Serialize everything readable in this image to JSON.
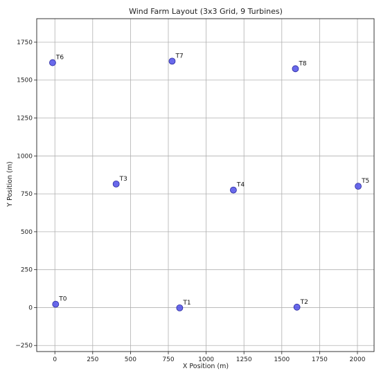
{
  "chart_data": {
    "type": "scatter",
    "title": "Wind Farm Layout (3x3 Grid, 9 Turbines)",
    "xlabel": "X Position (m)",
    "ylabel": "Y Position (m)",
    "xlim": [
      -120,
      2110
    ],
    "ylim": [
      -290,
      1905
    ],
    "xticks": [
      0,
      250,
      500,
      750,
      1000,
      1250,
      1500,
      1750,
      2000
    ],
    "yticks": [
      -250,
      0,
      250,
      500,
      750,
      1000,
      1250,
      1500,
      1750
    ],
    "grid": true,
    "marker_color": "#4f4fe8",
    "marker_edge": "#2a2a9e",
    "points": [
      {
        "label": "T0",
        "x": 5,
        "y": 22
      },
      {
        "label": "T1",
        "x": 825,
        "y": -2
      },
      {
        "label": "T2",
        "x": 1600,
        "y": 3
      },
      {
        "label": "T3",
        "x": 405,
        "y": 815
      },
      {
        "label": "T4",
        "x": 1180,
        "y": 775
      },
      {
        "label": "T5",
        "x": 2005,
        "y": 800
      },
      {
        "label": "T6",
        "x": -15,
        "y": 1615
      },
      {
        "label": "T7",
        "x": 775,
        "y": 1625
      },
      {
        "label": "T8",
        "x": 1590,
        "y": 1575
      }
    ]
  }
}
